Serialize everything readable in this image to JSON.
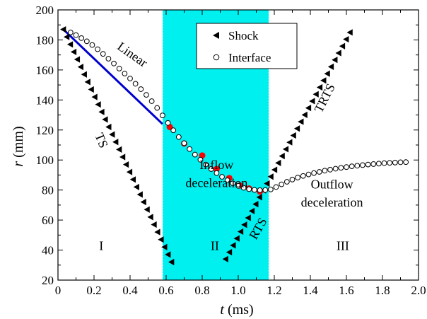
{
  "chart_data": {
    "type": "scatter",
    "xlabel_var": "t",
    "xlabel_unit": "(ms)",
    "ylabel_var": "r",
    "ylabel_unit": "(mm)",
    "xlim": [
      0,
      2.0
    ],
    "ylim": [
      20,
      200
    ],
    "xticks": [
      "0",
      "0.2",
      "0.4",
      "0.6",
      "0.8",
      "1.0",
      "1.2",
      "1.4",
      "1.6",
      "1.8",
      "2.0"
    ],
    "yticks": [
      "20",
      "40",
      "60",
      "80",
      "100",
      "120",
      "140",
      "160",
      "180",
      "200"
    ],
    "grid": false,
    "legend_position": "top-center",
    "legend": [
      {
        "label": "Shock",
        "marker": "left-triangle"
      },
      {
        "label": "Interface",
        "marker": "open-circle"
      }
    ],
    "shaded_region": {
      "x": [
        0.58,
        1.17
      ],
      "color": "#00f0f0"
    },
    "annotations": [
      {
        "text": "Linear",
        "x": 0.4,
        "y": 168,
        "rotate": 35
      },
      {
        "text": "TS",
        "x": 0.22,
        "y": 112,
        "rotate": 68
      },
      {
        "text": "Inflow",
        "x": 0.88,
        "y": 94
      },
      {
        "text": "deceleration",
        "x": 0.88,
        "y": 82
      },
      {
        "text": "Outflow",
        "x": 1.52,
        "y": 81
      },
      {
        "text": "deceleration",
        "x": 1.52,
        "y": 69
      },
      {
        "text": "TRTS",
        "x": 1.5,
        "y": 140,
        "rotate": -63
      },
      {
        "text": "RTS",
        "x": 1.13,
        "y": 53,
        "rotate": -60
      },
      {
        "text": "I",
        "x": 0.24,
        "y": 40
      },
      {
        "text": "II",
        "x": 0.87,
        "y": 40
      },
      {
        "text": "III",
        "x": 1.58,
        "y": 40
      }
    ],
    "series": [
      {
        "name": "Shock",
        "marker": "left-triangle",
        "segments": [
          {
            "x_start": 0.03,
            "y_start": 187,
            "x_end": 0.63,
            "y_end": 32,
            "n": 32
          },
          {
            "x_start": 0.93,
            "y_start": 34,
            "x_end": 1.62,
            "y_end": 185,
            "n": 34
          }
        ]
      },
      {
        "name": "Interface",
        "marker": "open-circle",
        "points": [
          [
            0.07,
            185.0
          ],
          [
            0.1,
            183.2
          ],
          [
            0.13,
            181.2
          ],
          [
            0.16,
            179.1
          ],
          [
            0.19,
            176.6
          ],
          [
            0.22,
            173.8
          ],
          [
            0.25,
            170.7
          ],
          [
            0.28,
            167.5
          ],
          [
            0.31,
            164.3
          ],
          [
            0.34,
            160.9
          ],
          [
            0.37,
            157.6
          ],
          [
            0.4,
            154.3
          ],
          [
            0.43,
            150.8
          ],
          [
            0.46,
            147.2
          ],
          [
            0.49,
            143.4
          ],
          [
            0.52,
            139.2
          ],
          [
            0.55,
            134.7
          ],
          [
            0.58,
            129.7
          ],
          [
            0.61,
            124.7
          ],
          [
            0.64,
            119.8
          ],
          [
            0.67,
            115.3
          ],
          [
            0.7,
            111.2
          ],
          [
            0.73,
            107.3
          ],
          [
            0.76,
            103.6
          ],
          [
            0.79,
            100.2
          ],
          [
            0.82,
            97.0
          ],
          [
            0.85,
            94.0
          ],
          [
            0.88,
            91.3
          ],
          [
            0.91,
            88.8
          ],
          [
            0.94,
            86.5
          ],
          [
            0.97,
            84.5
          ],
          [
            1.0,
            82.8
          ],
          [
            1.03,
            81.5
          ],
          [
            1.06,
            80.6
          ],
          [
            1.09,
            80.1
          ],
          [
            1.12,
            79.9
          ],
          [
            1.15,
            80.0
          ],
          [
            1.18,
            80.4
          ],
          [
            1.21,
            82.0
          ],
          [
            1.24,
            83.8
          ],
          [
            1.27,
            85.5
          ],
          [
            1.3,
            87.0
          ],
          [
            1.33,
            88.3
          ],
          [
            1.36,
            89.4
          ],
          [
            1.39,
            90.4
          ],
          [
            1.42,
            91.3
          ],
          [
            1.45,
            92.1
          ],
          [
            1.48,
            92.9
          ],
          [
            1.51,
            93.6
          ],
          [
            1.54,
            94.2
          ],
          [
            1.57,
            94.8
          ],
          [
            1.6,
            95.3
          ],
          [
            1.63,
            95.8
          ],
          [
            1.66,
            96.2
          ],
          [
            1.69,
            96.6
          ],
          [
            1.72,
            97.0
          ],
          [
            1.75,
            97.3
          ],
          [
            1.78,
            97.6
          ],
          [
            1.81,
            97.9
          ],
          [
            1.84,
            98.1
          ],
          [
            1.87,
            98.3
          ],
          [
            1.9,
            98.5
          ],
          [
            1.93,
            98.6
          ]
        ]
      },
      {
        "marker": "red-dot",
        "points": [
          [
            0.62,
            122
          ],
          [
            0.7,
            111
          ],
          [
            0.8,
            103
          ],
          [
            0.88,
            94
          ],
          [
            0.95,
            88
          ],
          [
            1.01,
            83
          ],
          [
            1.06,
            81
          ],
          [
            1.12,
            79
          ]
        ]
      },
      {
        "marker": "line",
        "color": "#0000cc",
        "points": [
          [
            0.03,
            187
          ],
          [
            0.58,
            124
          ]
        ]
      }
    ]
  }
}
